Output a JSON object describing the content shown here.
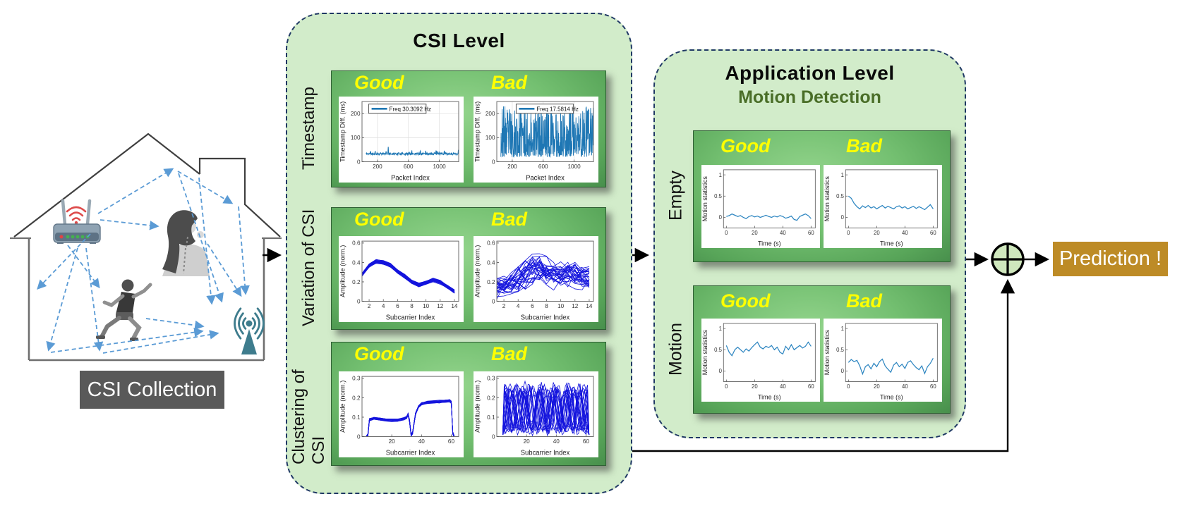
{
  "house": {
    "caption": "CSI Collection"
  },
  "csi_panel": {
    "title": "CSI Level",
    "rows": [
      {
        "label": "Timestamp",
        "good": "Good",
        "bad": "Bad",
        "plots": [
          "ts_good",
          "ts_bad"
        ]
      },
      {
        "label": "Variation of CSI",
        "good": "Good",
        "bad": "Bad",
        "plots": [
          "var_good",
          "var_bad"
        ]
      },
      {
        "label": "Clustering of CSI",
        "good": "Good",
        "bad": "Bad",
        "plots": [
          "clu_good",
          "clu_bad"
        ]
      }
    ]
  },
  "app_panel": {
    "title": "Application Level",
    "subtitle": "Motion Detection",
    "rows": [
      {
        "label": "Empty",
        "good": "Good",
        "bad": "Bad",
        "plots": [
          "emp_good",
          "emp_bad"
        ]
      },
      {
        "label": "Motion",
        "good": "Good",
        "bad": "Bad",
        "plots": [
          "mot_good",
          "mot_bad"
        ]
      }
    ]
  },
  "prediction_label": "Prediction !",
  "colors": {
    "panel_bg": "#d2ecca",
    "panel_border": "#1f3864",
    "good_bad_yellow": "#ffff00",
    "subtitle_green": "#4a6e28",
    "caption_bg": "#595959",
    "prediction_bg": "#bd8b26",
    "signal_arrow_blue": "#5b9bd5",
    "plot_blue": "#1f77b4",
    "plot_royal_blue": "#1414dd",
    "sum_node_fill": "#cfe7bd"
  },
  "chart_data": [
    {
      "id": "ts_good",
      "type": "line",
      "panel": "CSI Level",
      "row": "Timestamp",
      "quality": "Good",
      "xlabel": "Packet Index",
      "ylabel": "Timestamp Diff. (ms)",
      "xlim": [
        0,
        1250
      ],
      "ylim": [
        0,
        250
      ],
      "xticks": [
        200,
        600,
        1000
      ],
      "yticks": [
        0,
        100,
        200
      ],
      "grid": true,
      "legend": "Freq 30.3092 Hz",
      "legend_fx": 0.07,
      "color": "#1f77b4",
      "lw": 1.1,
      "gen": {
        "kind": "flat_spiky",
        "n": 300,
        "x0": 50,
        "x1": 1250,
        "base": 33,
        "noise": 9,
        "spike_prob": 0.07,
        "spike_amp": 18,
        "big_spike_at": 0.24,
        "big_spike_y": 62,
        "seed": 11
      }
    },
    {
      "id": "ts_bad",
      "type": "line",
      "panel": "CSI Level",
      "row": "Timestamp",
      "quality": "Bad",
      "xlabel": "Packet Index",
      "ylabel": "Timestamp Diff. (ms)",
      "xlim": [
        0,
        1250
      ],
      "ylim": [
        0,
        250
      ],
      "xticks": [
        200,
        600,
        1000
      ],
      "yticks": [
        0,
        100,
        200
      ],
      "grid": true,
      "legend": "Freq 17.5814 Hz",
      "legend_fx": 0.2,
      "color": "#1f77b4",
      "lw": 0.9,
      "gen": {
        "kind": "dense",
        "n": 430,
        "x0": 50,
        "x1": 1250,
        "ymin": 20,
        "ymax": 235,
        "pow": 1.7,
        "seed": 23
      }
    },
    {
      "id": "var_good",
      "type": "line",
      "panel": "CSI Level",
      "row": "Variation of CSI",
      "quality": "Good",
      "xlabel": "Subcarrier Index",
      "ylabel": "Amplitude (norm.)",
      "xlim": [
        1,
        14.6
      ],
      "ylim": [
        0,
        0.62
      ],
      "xticks": [
        2,
        4,
        6,
        8,
        10,
        12,
        14
      ],
      "yticks": [
        0,
        0.2,
        0.4,
        0.6
      ],
      "grid": false,
      "color": "#1414dd",
      "lw": 0.8,
      "gen": {
        "kind": "bundle",
        "lines": 26,
        "spread": 0.02,
        "noise": 0.014,
        "seed": 5,
        "x": [
          1,
          2,
          3,
          4,
          5,
          6,
          7,
          8,
          9,
          10,
          11,
          12,
          13,
          14
        ],
        "y": [
          0.27,
          0.37,
          0.41,
          0.4,
          0.37,
          0.31,
          0.26,
          0.2,
          0.17,
          0.19,
          0.22,
          0.2,
          0.15,
          0.1
        ]
      }
    },
    {
      "id": "var_bad",
      "type": "line",
      "panel": "CSI Level",
      "row": "Variation of CSI",
      "quality": "Bad",
      "xlabel": "Subcarrier Index",
      "ylabel": "Amplitude (norm.)",
      "xlim": [
        1,
        14.6
      ],
      "ylim": [
        0,
        0.62
      ],
      "xticks": [
        2,
        4,
        6,
        8,
        10,
        12,
        14
      ],
      "yticks": [
        0,
        0.2,
        0.4,
        0.6
      ],
      "grid": false,
      "color": "#1414dd",
      "lw": 0.8,
      "gen": {
        "kind": "chaos",
        "lines": 28,
        "floor": 0.02,
        "seed": 9,
        "envelope": [
          0.28,
          0.33,
          0.4,
          0.48,
          0.58,
          0.62,
          0.62,
          0.5,
          0.42,
          0.46,
          0.52,
          0.47,
          0.42,
          0.38
        ]
      }
    },
    {
      "id": "clu_good",
      "type": "line",
      "panel": "CSI Level",
      "row": "Clustering of CSI",
      "quality": "Good",
      "xlabel": "Subcarrier Index",
      "ylabel": "Amplitude (norm.)",
      "xlim": [
        0,
        65
      ],
      "ylim": [
        0,
        0.31
      ],
      "xticks": [
        20,
        40,
        60
      ],
      "yticks": [
        0,
        0.1,
        0.2,
        0.3
      ],
      "grid": false,
      "color": "#1414dd",
      "lw": 0.8,
      "gen": {
        "kind": "bundle",
        "lines": 20,
        "spread": 0.006,
        "noise": 0.005,
        "seed": 3,
        "x": [
          3,
          4,
          5,
          8,
          12,
          16,
          20,
          24,
          28,
          30,
          31,
          32,
          33,
          34,
          35,
          36,
          38,
          40,
          44,
          48,
          52,
          56,
          59,
          60,
          61,
          62
        ],
        "y": [
          0.0,
          0.01,
          0.088,
          0.094,
          0.09,
          0.087,
          0.085,
          0.086,
          0.092,
          0.1,
          0.115,
          0.08,
          0.008,
          0.02,
          0.07,
          0.12,
          0.155,
          0.17,
          0.177,
          0.18,
          0.181,
          0.184,
          0.185,
          0.178,
          0.02,
          0.0
        ]
      }
    },
    {
      "id": "clu_bad",
      "type": "line",
      "panel": "CSI Level",
      "row": "Clustering of CSI",
      "quality": "Bad",
      "xlabel": "Subcarrier Index",
      "ylabel": "Amplitude (norm.)",
      "xlim": [
        0,
        65
      ],
      "ylim": [
        0,
        0.31
      ],
      "xticks": [
        20,
        40,
        60
      ],
      "yticks": [
        0,
        0.1,
        0.2,
        0.3
      ],
      "grid": false,
      "color": "#1414dd",
      "lw": 0.8,
      "gen": {
        "kind": "braid",
        "lines": 22,
        "x0": 4,
        "x1": 62,
        "mid": 0.14,
        "amp_min": 0.08,
        "amp_max": 0.13,
        "cycles_min": 4.5,
        "cycles_max": 7,
        "seed": 17
      }
    },
    {
      "id": "emp_good",
      "type": "line",
      "panel": "Application Level / Motion Detection",
      "row": "Empty",
      "quality": "Good",
      "xlabel": "Time (s)",
      "ylabel": "Motion statistics",
      "xlim": [
        -2,
        63
      ],
      "ylim": [
        -0.25,
        1.12
      ],
      "xticks": [
        0,
        20,
        40,
        60
      ],
      "yticks": [
        0,
        0.5,
        1
      ],
      "grid": false,
      "color": "#2e86c1",
      "lw": 1.3,
      "gen": {
        "kind": "explicit"
      },
      "series": [
        {
          "x0": 0,
          "dx": 2,
          "y": [
            0.02,
            0.04,
            0.08,
            0.05,
            0.02,
            0.04,
            0,
            -0.03,
            0.02,
            0.04,
            0.01,
            0.03,
            0,
            0.02,
            0.05,
            0.02,
            0,
            0.03,
            0.01,
            0.04,
            0.02,
            -0.02,
            0,
            0.03,
            -0.05,
            -0.07,
            0.02,
            0.05,
            0.08,
            0.04,
            -0.03
          ]
        }
      ]
    },
    {
      "id": "emp_bad",
      "type": "line",
      "panel": "Application Level / Motion Detection",
      "row": "Empty",
      "quality": "Bad",
      "xlabel": "Time (s)",
      "ylabel": "Motion statistics",
      "xlim": [
        -2,
        63
      ],
      "ylim": [
        -0.25,
        1.12
      ],
      "xticks": [
        0,
        20,
        40,
        60
      ],
      "yticks": [
        0,
        0.5,
        1
      ],
      "grid": false,
      "color": "#2e86c1",
      "lw": 1.3,
      "gen": {
        "kind": "explicit"
      },
      "series": [
        {
          "x0": 0,
          "dx": 2,
          "y": [
            0.5,
            0.45,
            0.33,
            0.25,
            0.2,
            0.27,
            0.23,
            0.28,
            0.22,
            0.25,
            0.2,
            0.24,
            0.28,
            0.22,
            0.26,
            0.23,
            0.2,
            0.25,
            0.27,
            0.22,
            0.25,
            0.2,
            0.23,
            0.26,
            0.21,
            0.25,
            0.22,
            0.18,
            0.24,
            0.3,
            0.2
          ]
        }
      ]
    },
    {
      "id": "mot_good",
      "type": "line",
      "panel": "Application Level / Motion Detection",
      "row": "Motion",
      "quality": "Good",
      "xlabel": "Time (s)",
      "ylabel": "Motion statistics",
      "xlim": [
        -2,
        63
      ],
      "ylim": [
        -0.25,
        1.12
      ],
      "xticks": [
        0,
        20,
        40,
        60
      ],
      "yticks": [
        0,
        0.5,
        1
      ],
      "grid": false,
      "color": "#2e86c1",
      "lw": 1.3,
      "gen": {
        "kind": "explicit"
      },
      "series": [
        {
          "x0": 0,
          "dx": 2,
          "y": [
            0.6,
            0.44,
            0.36,
            0.5,
            0.56,
            0.5,
            0.44,
            0.52,
            0.47,
            0.55,
            0.62,
            0.68,
            0.56,
            0.52,
            0.58,
            0.55,
            0.6,
            0.5,
            0.56,
            0.44,
            0.4,
            0.58,
            0.5,
            0.62,
            0.5,
            0.55,
            0.6,
            0.54,
            0.58,
            0.68,
            0.58
          ]
        }
      ]
    },
    {
      "id": "mot_bad",
      "type": "line",
      "panel": "Application Level / Motion Detection",
      "row": "Motion",
      "quality": "Bad",
      "xlabel": "Time (s)",
      "ylabel": "Motion statistics",
      "xlim": [
        -2,
        63
      ],
      "ylim": [
        -0.25,
        1.12
      ],
      "xticks": [
        0,
        20,
        40,
        60
      ],
      "yticks": [
        0,
        0.5,
        1
      ],
      "grid": false,
      "color": "#2e86c1",
      "lw": 1.3,
      "gen": {
        "kind": "explicit"
      },
      "series": [
        {
          "x0": 0,
          "dx": 2,
          "y": [
            0.2,
            0.27,
            0.22,
            0.25,
            0.12,
            -0.07,
            0.1,
            0.15,
            0.05,
            0.18,
            0.1,
            0.22,
            0.28,
            0.12,
            0.04,
            -0.03,
            0.14,
            0.2,
            0.1,
            0.16,
            0.06,
            0.2,
            0.24,
            0.15,
            0.08,
            0.03,
            0.12,
            -0.06,
            0.1,
            0.18,
            0.3
          ]
        }
      ]
    }
  ]
}
